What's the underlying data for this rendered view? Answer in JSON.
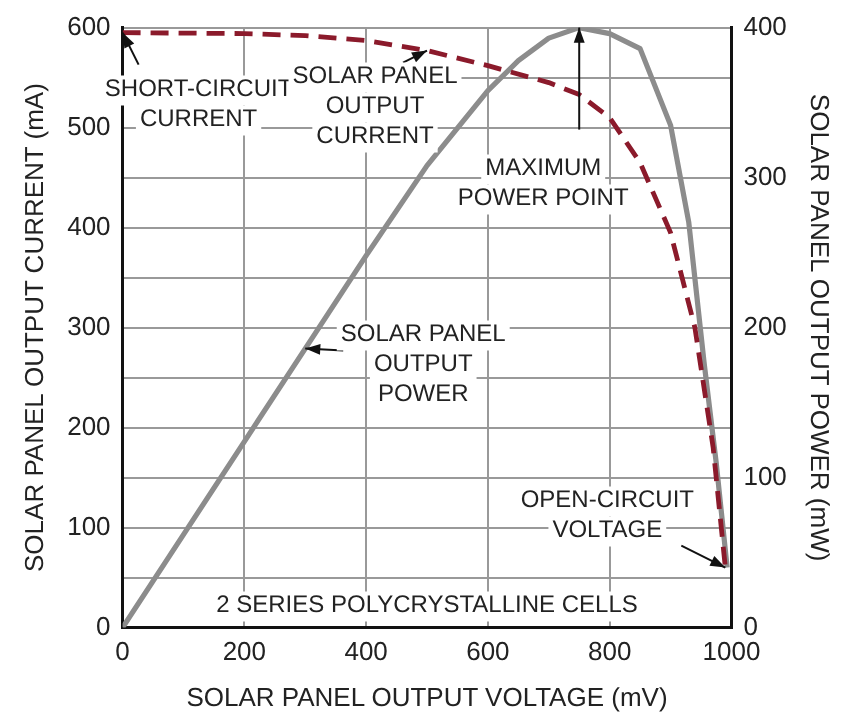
{
  "chart_data": {
    "type": "line",
    "xlabel": "SOLAR PANEL OUTPUT VOLTAGE (mV)",
    "ylabel": "SOLAR PANEL OUTPUT CURRENT (mA)",
    "y2label": "SOLAR PANEL OUTPUT POWER (mW)",
    "xlim": [
      0,
      1000
    ],
    "xticks": [
      0,
      200,
      400,
      600,
      800,
      1000
    ],
    "ylim": [
      0,
      600
    ],
    "yticks": [
      0,
      {
        "value": 50,
        "label": null
      },
      100,
      {
        "value": 150,
        "label": null
      },
      200,
      {
        "value": 250,
        "label": null
      },
      300,
      {
        "value": 350,
        "label": null
      },
      400,
      {
        "value": 450,
        "label": null
      },
      500,
      {
        "value": 550,
        "label": null
      },
      600
    ],
    "y2lim": [
      0,
      400
    ],
    "y2ticks": [
      0,
      100,
      200,
      300,
      400
    ],
    "grid": true,
    "legend": false,
    "marker": "none",
    "series": [
      {
        "name": "SOLAR PANEL OUTPUT CURRENT",
        "color": "#8b1a2b",
        "line_style": "dashed",
        "x": [
          0,
          200,
          300,
          400,
          500,
          600,
          700,
          750,
          800,
          850,
          900,
          940,
          970,
          990
        ],
        "values": [
          595,
          594,
          592,
          587,
          577,
          562,
          545,
          533,
          510,
          465,
          395,
          300,
          180,
          60
        ]
      },
      {
        "name": "SOLAR PANEL OUTPUT POWER",
        "color": "#8c8c8c",
        "line_style": "solid",
        "axis": "y2",
        "x": [
          0,
          100,
          200,
          300,
          400,
          500,
          600,
          650,
          700,
          750,
          800,
          850,
          900,
          930,
          955,
          975,
          993
        ],
        "values": [
          0,
          62,
          124,
          186,
          248,
          308,
          358,
          378,
          393,
          400,
          396,
          386,
          335,
          270,
          177,
          110,
          40
        ]
      }
    ],
    "annotations": [
      {
        "text": "SHORT-CIRCUIT CURRENT",
        "x": 0,
        "y": 595
      },
      {
        "text": "MAXIMUM POWER POINT",
        "x": 750,
        "y": 600
      },
      {
        "text": "OPEN-CIRCUIT VOLTAGE",
        "x": 990,
        "y": 60
      },
      "2 SERIES POLYCRYSTALLINE CELLS"
    ]
  }
}
